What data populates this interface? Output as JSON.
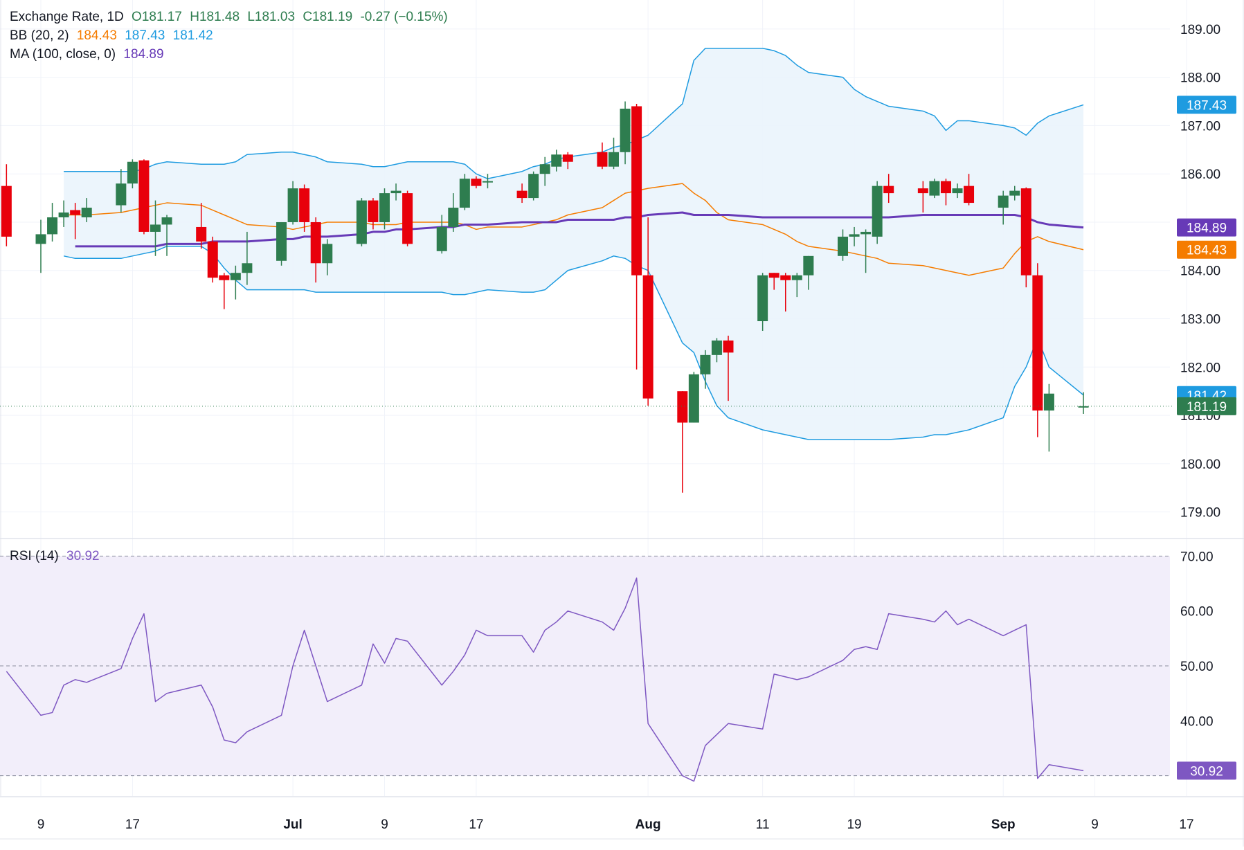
{
  "legend": {
    "symbol": "Exchange Rate, 1D",
    "open": "O181.17",
    "high": "H181.48",
    "low": "L181.03",
    "close": "C181.19",
    "change": "-0.27 (−0.15%)",
    "bb_label": "BB (20, 2)",
    "bb_basis": "184.43",
    "bb_upper": "187.43",
    "bb_lower": "181.42",
    "ma_label": "MA (100, close, 0)",
    "ma_value": "184.89",
    "rsi_label": "RSI (14)",
    "rsi_value": "30.92"
  },
  "colors": {
    "up": "#2e7d4f",
    "down": "#e8000b",
    "bb_basis": "#f57c00",
    "bb_band": "#1e9be0",
    "bb_fill": "#eaf4fc",
    "ma": "#673ab7",
    "rsi_line": "#7e57c2",
    "rsi_fill": "#f2eefa",
    "current_price": "#2e7d4f"
  },
  "chart_data": {
    "type": "candlestick",
    "price_axis": {
      "ticks": [
        "189.00",
        "188.00",
        "187.00",
        "186.00",
        "184.00",
        "183.00",
        "182.00",
        "181.00",
        "180.00",
        "179.00"
      ],
      "range": [
        178.45,
        189.6
      ]
    },
    "price_badges": [
      {
        "name": "bb-upper",
        "value": "187.43",
        "y": 187.43,
        "color": "#1e9be0"
      },
      {
        "name": "ma",
        "value": "184.89",
        "y": 184.89,
        "color": "#673ab7"
      },
      {
        "name": "bb-basis",
        "value": "184.43",
        "y": 184.43,
        "color": "#f57c00"
      },
      {
        "name": "bb-lower",
        "value": "181.42",
        "y": 181.42,
        "color": "#1e9be0"
      },
      {
        "name": "last-price",
        "value": "181.19",
        "y": 181.19,
        "color": "#2e7d4f"
      }
    ],
    "x_axis": {
      "labels": [
        {
          "text": "9",
          "date": "2025-06-09",
          "bold": false
        },
        {
          "text": "17",
          "date": "2025-06-17",
          "bold": false
        },
        {
          "text": "Jul",
          "date": "2025-07-01",
          "bold": true
        },
        {
          "text": "9",
          "date": "2025-07-09",
          "bold": false
        },
        {
          "text": "17",
          "date": "2025-07-17",
          "bold": false
        },
        {
          "text": "Aug",
          "date": "2025-08-01",
          "bold": true
        },
        {
          "text": "11",
          "date": "2025-08-11",
          "bold": false
        },
        {
          "text": "19",
          "date": "2025-08-19",
          "bold": false
        },
        {
          "text": "Sep",
          "date": "2025-09-01",
          "bold": true
        },
        {
          "text": "9",
          "date": "2025-09-09",
          "bold": false
        },
        {
          "text": "17",
          "date": "2025-09-17",
          "bold": false
        }
      ]
    },
    "candles": [
      {
        "date": "2025-06-06",
        "o": 185.75,
        "h": 186.2,
        "l": 184.5,
        "c": 184.7
      },
      {
        "date": "2025-06-09",
        "o": 184.55,
        "h": 185.05,
        "l": 183.95,
        "c": 184.75
      },
      {
        "date": "2025-06-10",
        "o": 184.75,
        "h": 185.4,
        "l": 184.6,
        "c": 185.1
      },
      {
        "date": "2025-06-11",
        "o": 185.1,
        "h": 185.45,
        "l": 184.9,
        "c": 185.2
      },
      {
        "date": "2025-06-12",
        "o": 185.25,
        "h": 185.4,
        "l": 184.65,
        "c": 185.15
      },
      {
        "date": "2025-06-13",
        "o": 185.1,
        "h": 185.5,
        "l": 185.0,
        "c": 185.3
      },
      {
        "date": "2025-06-16",
        "o": 185.35,
        "h": 186.1,
        "l": 185.2,
        "c": 185.8
      },
      {
        "date": "2025-06-17",
        "o": 185.8,
        "h": 186.3,
        "l": 185.7,
        "c": 186.25
      },
      {
        "date": "2025-06-18",
        "o": 186.28,
        "h": 186.3,
        "l": 184.75,
        "c": 184.8
      },
      {
        "date": "2025-06-19",
        "o": 184.8,
        "h": 185.45,
        "l": 184.3,
        "c": 184.95
      },
      {
        "date": "2025-06-20",
        "o": 184.95,
        "h": 185.15,
        "l": 184.3,
        "c": 185.1
      },
      {
        "date": "2025-06-23",
        "o": 184.9,
        "h": 185.4,
        "l": 184.45,
        "c": 184.6
      },
      {
        "date": "2025-06-24",
        "o": 184.6,
        "h": 184.7,
        "l": 183.75,
        "c": 183.85
      },
      {
        "date": "2025-06-25",
        "o": 183.9,
        "h": 183.95,
        "l": 183.2,
        "c": 183.8
      },
      {
        "date": "2025-06-26",
        "o": 183.8,
        "h": 184.1,
        "l": 183.4,
        "c": 183.95
      },
      {
        "date": "2025-06-27",
        "o": 183.95,
        "h": 184.8,
        "l": 183.7,
        "c": 184.15
      },
      {
        "date": "2025-06-30",
        "o": 184.2,
        "h": 185.0,
        "l": 184.1,
        "c": 185.0
      },
      {
        "date": "2025-07-01",
        "o": 185.0,
        "h": 185.85,
        "l": 184.95,
        "c": 185.7
      },
      {
        "date": "2025-07-02",
        "o": 185.7,
        "h": 185.78,
        "l": 184.8,
        "c": 185.0
      },
      {
        "date": "2025-07-03",
        "o": 185.0,
        "h": 185.1,
        "l": 183.75,
        "c": 184.15
      },
      {
        "date": "2025-07-04",
        "o": 184.15,
        "h": 184.65,
        "l": 183.9,
        "c": 184.55
      },
      {
        "date": "2025-07-07",
        "o": 184.55,
        "h": 185.5,
        "l": 184.5,
        "c": 185.45
      },
      {
        "date": "2025-07-08",
        "o": 185.45,
        "h": 185.5,
        "l": 184.85,
        "c": 185.0
      },
      {
        "date": "2025-07-09",
        "o": 185.0,
        "h": 185.7,
        "l": 184.85,
        "c": 185.6
      },
      {
        "date": "2025-07-10",
        "o": 185.6,
        "h": 185.8,
        "l": 185.45,
        "c": 185.65
      },
      {
        "date": "2025-07-11",
        "o": 185.6,
        "h": 185.65,
        "l": 184.5,
        "c": 184.55
      },
      {
        "date": "2025-07-14",
        "o": 184.4,
        "h": 185.15,
        "l": 184.35,
        "c": 184.9
      },
      {
        "date": "2025-07-15",
        "o": 184.9,
        "h": 185.6,
        "l": 184.8,
        "c": 185.3
      },
      {
        "date": "2025-07-16",
        "o": 185.3,
        "h": 186.0,
        "l": 185.25,
        "c": 185.9
      },
      {
        "date": "2025-07-17",
        "o": 185.9,
        "h": 185.95,
        "l": 185.7,
        "c": 185.75
      },
      {
        "date": "2025-07-18",
        "o": 185.85,
        "h": 186.0,
        "l": 185.7,
        "c": 185.85
      },
      {
        "date": "2025-07-21",
        "o": 185.65,
        "h": 185.8,
        "l": 185.4,
        "c": 185.5
      },
      {
        "date": "2025-07-22",
        "o": 185.5,
        "h": 186.05,
        "l": 185.45,
        "c": 186.0
      },
      {
        "date": "2025-07-23",
        "o": 186.0,
        "h": 186.35,
        "l": 185.75,
        "c": 186.2
      },
      {
        "date": "2025-07-24",
        "o": 186.15,
        "h": 186.5,
        "l": 186.05,
        "c": 186.4
      },
      {
        "date": "2025-07-25",
        "o": 186.4,
        "h": 186.45,
        "l": 186.1,
        "c": 186.25
      },
      {
        "date": "2025-07-28",
        "o": 186.45,
        "h": 186.65,
        "l": 186.1,
        "c": 186.15
      },
      {
        "date": "2025-07-29",
        "o": 186.15,
        "h": 186.75,
        "l": 186.1,
        "c": 186.45
      },
      {
        "date": "2025-07-30",
        "o": 186.45,
        "h": 187.5,
        "l": 186.2,
        "c": 187.35
      },
      {
        "date": "2025-07-31",
        "o": 187.4,
        "h": 187.45,
        "l": 181.95,
        "c": 183.9
      },
      {
        "date": "2025-08-01",
        "o": 183.9,
        "h": 185.1,
        "l": 181.2,
        "c": 181.35
      },
      {
        "date": "2025-08-04",
        "o": 181.5,
        "h": 181.5,
        "l": 179.4,
        "c": 180.85
      },
      {
        "date": "2025-08-05",
        "o": 180.85,
        "h": 181.9,
        "l": 180.85,
        "c": 181.85
      },
      {
        "date": "2025-08-06",
        "o": 181.85,
        "h": 182.35,
        "l": 181.55,
        "c": 182.25
      },
      {
        "date": "2025-08-07",
        "o": 182.25,
        "h": 182.6,
        "l": 182.1,
        "c": 182.55
      },
      {
        "date": "2025-08-08",
        "o": 182.55,
        "h": 182.65,
        "l": 181.3,
        "c": 182.3
      },
      {
        "date": "2025-08-11",
        "o": 182.95,
        "h": 183.95,
        "l": 182.75,
        "c": 183.9
      },
      {
        "date": "2025-08-12",
        "o": 183.95,
        "h": 183.95,
        "l": 183.6,
        "c": 183.85
      },
      {
        "date": "2025-08-13",
        "o": 183.9,
        "h": 183.95,
        "l": 183.15,
        "c": 183.8
      },
      {
        "date": "2025-08-14",
        "o": 183.8,
        "h": 183.95,
        "l": 183.45,
        "c": 183.9
      },
      {
        "date": "2025-08-15",
        "o": 183.9,
        "h": 184.3,
        "l": 183.6,
        "c": 184.3
      },
      {
        "date": "2025-08-18",
        "o": 184.3,
        "h": 184.85,
        "l": 184.2,
        "c": 184.7
      },
      {
        "date": "2025-08-19",
        "o": 184.7,
        "h": 184.9,
        "l": 184.5,
        "c": 184.75
      },
      {
        "date": "2025-08-20",
        "o": 184.75,
        "h": 184.85,
        "l": 183.95,
        "c": 184.8
      },
      {
        "date": "2025-08-21",
        "o": 184.7,
        "h": 185.85,
        "l": 184.55,
        "c": 185.75
      },
      {
        "date": "2025-08-22",
        "o": 185.75,
        "h": 186.0,
        "l": 185.4,
        "c": 185.6
      },
      {
        "date": "2025-08-25",
        "o": 185.7,
        "h": 185.85,
        "l": 185.2,
        "c": 185.6
      },
      {
        "date": "2025-08-26",
        "o": 185.55,
        "h": 185.9,
        "l": 185.5,
        "c": 185.85
      },
      {
        "date": "2025-08-27",
        "o": 185.85,
        "h": 185.9,
        "l": 185.35,
        "c": 185.6
      },
      {
        "date": "2025-08-28",
        "o": 185.6,
        "h": 185.8,
        "l": 185.5,
        "c": 185.7
      },
      {
        "date": "2025-08-29",
        "o": 185.75,
        "h": 186.0,
        "l": 185.35,
        "c": 185.4
      },
      {
        "date": "2025-09-01",
        "o": 185.3,
        "h": 185.65,
        "l": 184.95,
        "c": 185.55
      },
      {
        "date": "2025-09-02",
        "o": 185.55,
        "h": 185.75,
        "l": 185.45,
        "c": 185.65
      },
      {
        "date": "2025-09-03",
        "o": 185.7,
        "h": 185.72,
        "l": 183.65,
        "c": 183.9
      },
      {
        "date": "2025-09-04",
        "o": 183.9,
        "h": 184.15,
        "l": 180.55,
        "c": 181.1
      },
      {
        "date": "2025-09-05",
        "o": 181.1,
        "h": 181.65,
        "l": 180.25,
        "c": 181.45
      },
      {
        "date": "2025-09-08",
        "o": 181.17,
        "h": 181.48,
        "l": 181.03,
        "c": 181.19
      }
    ],
    "bb_upper": [
      186.05,
      186.05,
      186.05,
      186.05,
      186.05,
      186.1,
      186.2,
      186.25,
      186.2,
      186.2,
      186.2,
      186.25,
      186.4,
      186.45,
      186.45,
      186.4,
      186.35,
      186.25,
      186.2,
      186.15,
      186.15,
      186.2,
      186.25,
      186.25,
      186.25,
      186.2,
      186.0,
      185.9,
      186.05,
      186.15,
      186.2,
      186.3,
      186.35,
      186.45,
      186.55,
      186.6,
      186.7,
      186.8,
      187.45,
      188.35,
      188.6,
      188.6,
      188.6,
      188.6,
      188.55,
      188.45,
      188.25,
      188.1,
      188.0,
      187.75,
      187.6,
      187.5,
      187.4,
      187.3,
      187.2,
      186.9,
      187.1,
      187.1,
      187.0,
      186.95,
      186.8,
      187.05,
      187.2,
      187.43
    ],
    "bb_basis": [
      185.15,
      185.15,
      185.15,
      185.2,
      185.25,
      185.3,
      185.35,
      185.4,
      185.35,
      185.25,
      185.15,
      185.05,
      184.95,
      184.9,
      184.85,
      184.9,
      184.95,
      185.0,
      185.0,
      184.95,
      184.95,
      184.95,
      185.0,
      185.0,
      185.0,
      184.95,
      184.85,
      184.9,
      184.9,
      184.95,
      185.0,
      185.05,
      185.15,
      185.3,
      185.45,
      185.6,
      185.65,
      185.7,
      185.8,
      185.6,
      185.45,
      185.2,
      185.05,
      184.95,
      184.85,
      184.75,
      184.6,
      184.5,
      184.4,
      184.35,
      184.3,
      184.25,
      184.15,
      184.1,
      184.05,
      184.0,
      183.95,
      183.9,
      184.05,
      184.35,
      184.6,
      184.7,
      184.6,
      184.43
    ],
    "bb_lower": [
      184.3,
      184.25,
      184.25,
      184.25,
      184.3,
      184.35,
      184.4,
      184.5,
      184.5,
      184.35,
      184.05,
      183.8,
      183.6,
      183.6,
      183.6,
      183.6,
      183.55,
      183.55,
      183.55,
      183.55,
      183.55,
      183.55,
      183.55,
      183.55,
      183.5,
      183.5,
      183.55,
      183.6,
      183.55,
      183.55,
      183.6,
      183.8,
      184.0,
      184.2,
      184.3,
      184.25,
      184.1,
      184.0,
      182.5,
      182.3,
      181.7,
      181.2,
      180.95,
      180.7,
      180.65,
      180.6,
      180.55,
      180.5,
      180.5,
      180.5,
      180.5,
      180.5,
      180.5,
      180.55,
      180.6,
      180.6,
      180.65,
      180.7,
      180.95,
      181.6,
      182.0,
      182.6,
      182.0,
      181.42
    ],
    "ma": [
      184.5,
      184.5,
      184.5,
      184.5,
      184.5,
      184.5,
      184.55,
      184.55,
      184.6,
      184.6,
      184.6,
      184.6,
      184.65,
      184.65,
      184.7,
      184.7,
      184.7,
      184.75,
      184.8,
      184.8,
      184.85,
      184.85,
      184.9,
      184.9,
      184.95,
      184.95,
      184.95,
      185.0,
      185.0,
      185.0,
      185.0,
      185.05,
      185.05,
      185.05,
      185.1,
      185.1,
      185.15,
      185.2,
      185.15,
      185.15,
      185.15,
      185.15,
      185.1,
      185.1,
      185.1,
      185.1,
      185.1,
      185.1,
      185.1,
      185.1,
      185.1,
      185.1,
      185.15,
      185.15,
      185.15,
      185.15,
      185.15,
      185.15,
      185.15,
      185.1,
      185.0,
      184.95,
      184.89
    ],
    "rsi": {
      "range": [
        26.3,
        73.2
      ],
      "levels": [
        70,
        50,
        30
      ],
      "tick_labels": [
        "70.00",
        "60.00",
        "50.00",
        "40.00"
      ],
      "values": [
        49.0,
        41.0,
        41.5,
        46.5,
        47.5,
        47.0,
        49.5,
        55.0,
        59.5,
        43.5,
        45.0,
        46.5,
        42.5,
        36.5,
        36.0,
        38.0,
        41.0,
        50.0,
        56.5,
        50.0,
        43.5,
        46.5,
        54.0,
        50.5,
        55.0,
        54.5,
        46.5,
        49.0,
        52.0,
        56.5,
        55.5,
        55.5,
        52.5,
        56.5,
        58.0,
        60.0,
        58.0,
        56.5,
        60.5,
        66.0,
        39.5,
        30.0,
        29.0,
        35.5,
        37.5,
        39.5,
        38.5,
        48.5,
        48.0,
        47.5,
        48.0,
        51.0,
        53.0,
        53.5,
        53.0,
        59.5,
        58.5,
        58.0,
        60.0,
        57.5,
        58.5,
        55.5,
        56.5,
        57.5,
        29.5,
        32.0,
        30.92
      ]
    }
  }
}
